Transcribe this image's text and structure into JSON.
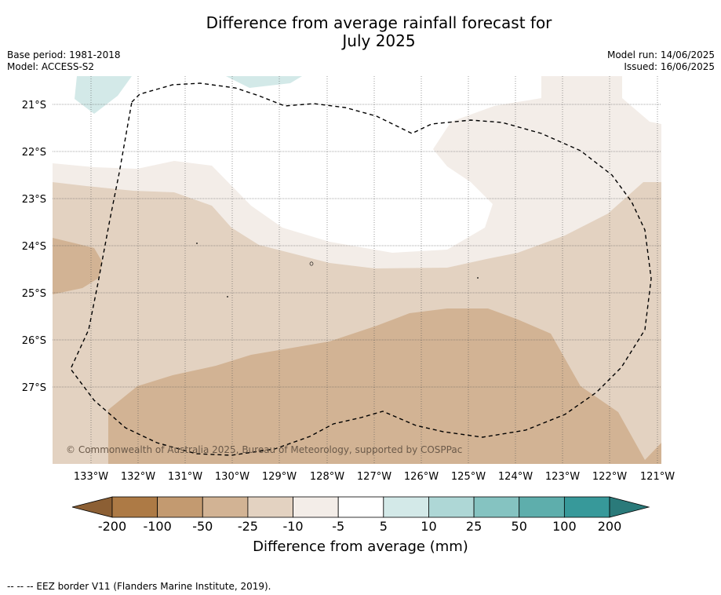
{
  "title_line1": "Difference from average rainfall forecast for",
  "title_line2": "July 2025",
  "meta_left": {
    "base_period": "Base period: 1981-2018",
    "model": "Model: ACCESS-S2"
  },
  "meta_right": {
    "model_run": "Model run: 14/06/2025",
    "issued": "Issued: 16/06/2025"
  },
  "map": {
    "lon_labels": [
      "133°W",
      "132°W",
      "131°W",
      "130°W",
      "129°W",
      "128°W",
      "127°W",
      "126°W",
      "125°W",
      "124°W",
      "123°W",
      "122°W",
      "121°W"
    ],
    "lat_labels": [
      "21°S",
      "22°S",
      "23°S",
      "24°S",
      "25°S",
      "26°S",
      "27°S"
    ],
    "copyright": "© Commonwealth of Australia 2025, Bureau of Meteorology, supported by COSPPac",
    "colors": {
      "n200": "#8c5f34",
      "n100": "#ad7a45",
      "n50": "#c39a70",
      "n25": "#d2b394",
      "n10": "#e3d2c1",
      "n5": "#f3ede8",
      "zero": "#ffffff",
      "p5": "#d3e9e8",
      "p10": "#aed7d6",
      "p25": "#85c3c1",
      "p50": "#5eaeac",
      "p100": "#37999a",
      "p200": "#2a7a7a"
    }
  },
  "colorbar": {
    "ticks": [
      "-200",
      "-100",
      "-50",
      "-25",
      "-10",
      "-5",
      "5",
      "10",
      "25",
      "50",
      "100",
      "200"
    ],
    "label": "Difference from average (mm)"
  },
  "footnote": "--  --  -- EEZ border V11 (Flanders Marine Institute, 2019)."
}
